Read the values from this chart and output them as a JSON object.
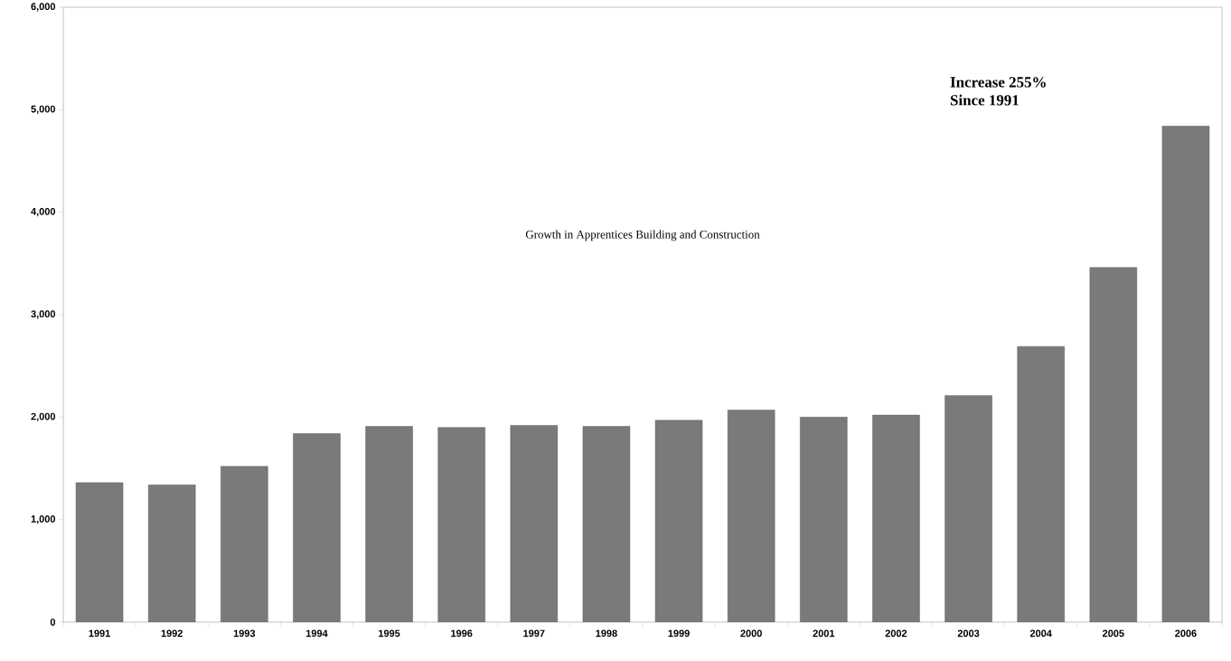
{
  "chart_data": {
    "type": "bar",
    "title": "Growth in Apprentices Building and Construction",
    "categories": [
      "1991",
      "1992",
      "1993",
      "1994",
      "1995",
      "1996",
      "1997",
      "1998",
      "1999",
      "2000",
      "2001",
      "2002",
      "2003",
      "2004",
      "2005",
      "2006"
    ],
    "values": [
      1360,
      1340,
      1520,
      1840,
      1910,
      1900,
      1920,
      1910,
      1970,
      2070,
      2000,
      2020,
      2210,
      2690,
      3460,
      4840
    ],
    "color": "#7a7a7a",
    "ylim": [
      0,
      6000
    ],
    "yticks": [
      {
        "value": 0,
        "label": "0"
      },
      {
        "value": 1000,
        "label": "1,000"
      },
      {
        "value": 2000,
        "label": "2,000"
      },
      {
        "value": 3000,
        "label": "3,000"
      },
      {
        "value": 4000,
        "label": "4,000"
      },
      {
        "value": 5000,
        "label": "5,000"
      },
      {
        "value": 6000,
        "label": "6,000"
      }
    ],
    "annotations": [
      "Increase 255%",
      "Since 1991"
    ]
  }
}
